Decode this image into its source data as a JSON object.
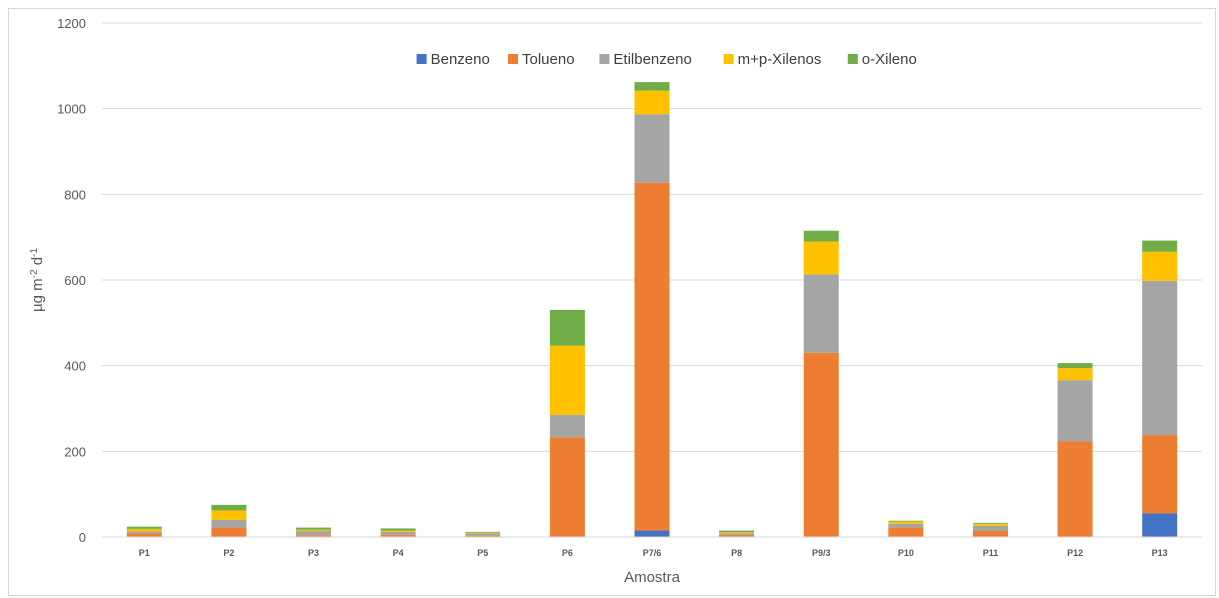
{
  "chart_data": {
    "type": "bar",
    "stacked": true,
    "categories": [
      "P1",
      "P2",
      "P3",
      "P4",
      "P5",
      "P6",
      "P7/6",
      "P8",
      "P9/3",
      "P10",
      "P11",
      "P12",
      "P13"
    ],
    "series": [
      {
        "name": "Benzeno",
        "color": "#4472C4",
        "values": [
          0,
          0,
          0,
          0,
          0,
          0,
          15,
          0,
          0,
          0,
          0,
          0,
          55
        ]
      },
      {
        "name": "Tolueno",
        "color": "#ED7D31",
        "values": [
          8,
          22,
          4,
          5,
          3,
          233,
          812,
          5,
          430,
          22,
          14,
          223,
          183
        ]
      },
      {
        "name": "Etilbenzeno",
        "color": "#A5A5A5",
        "values": [
          5,
          18,
          10,
          7,
          5,
          52,
          160,
          4,
          183,
          9,
          12,
          143,
          360
        ]
      },
      {
        "name": "m+p-Xilenos",
        "color": "#FFC000",
        "values": [
          6,
          22,
          3,
          3,
          2,
          162,
          55,
          2,
          77,
          5,
          5,
          28,
          68
        ]
      },
      {
        "name": "o-Xileno",
        "color": "#70AD47",
        "values": [
          5,
          13,
          5,
          5,
          2,
          83,
          20,
          4,
          25,
          2,
          2,
          12,
          26
        ]
      }
    ],
    "xlabel": "Amostra",
    "ylabel_base": "µg m",
    "ylabel_sup1": "-2",
    "ylabel_mid": " d",
    "ylabel_sup2": "-1",
    "ylim": [
      0,
      1200
    ],
    "yticks": [
      0,
      200,
      400,
      600,
      800,
      1000,
      1200
    ],
    "grid": "horizontal",
    "legend_position": "top-center"
  }
}
